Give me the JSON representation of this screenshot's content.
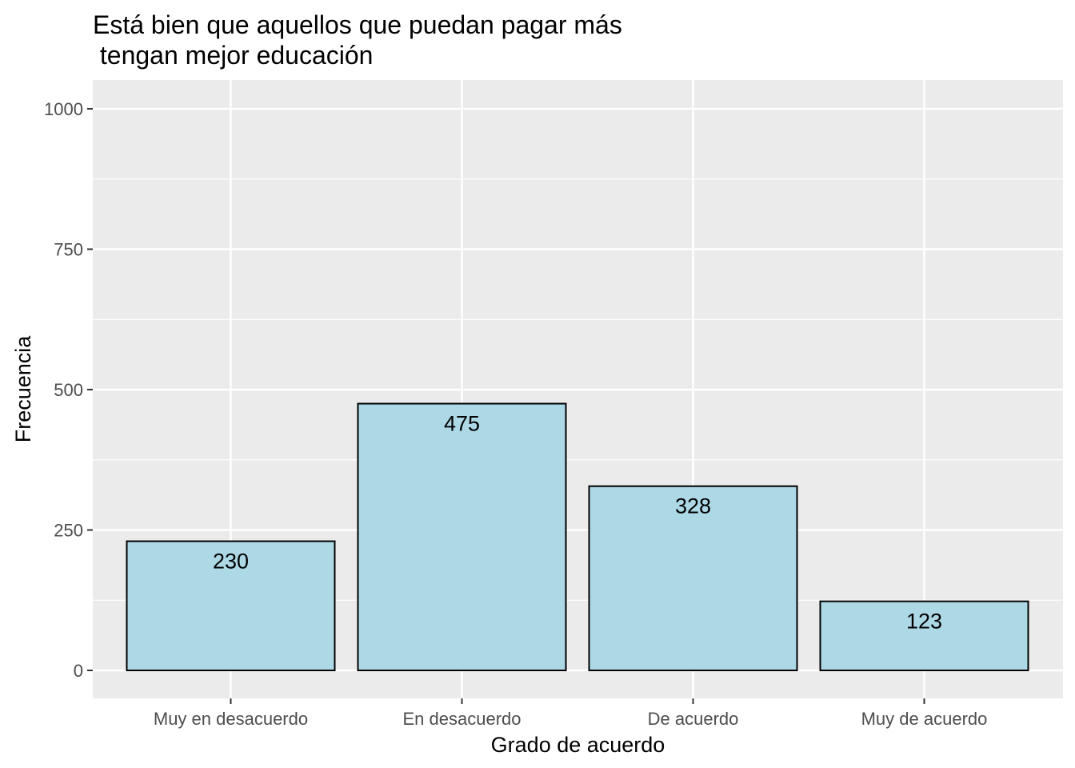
{
  "chart_data": {
    "type": "bar",
    "title": "Está bien que aquellos que puedan pagar más\n tengan mejor educación",
    "xlabel": "Grado de acuerdo",
    "ylabel": "Frecuencia",
    "categories": [
      "Muy en desacuerdo",
      "En desacuerdo",
      "De acuerdo",
      "Muy de acuerdo"
    ],
    "values": [
      230,
      475,
      328,
      123
    ],
    "data_labels": [
      "230",
      "475",
      "328",
      "123"
    ],
    "ylim": [
      0,
      1000
    ],
    "yticks": [
      0,
      250,
      500,
      750,
      1000
    ],
    "ytick_labels": [
      "0",
      "250",
      "500",
      "750",
      "1000"
    ],
    "grid": true,
    "legend": "none",
    "colors": {
      "bar_fill": "#add8e6",
      "bar_stroke": "#000000",
      "panel_bg": "#ebebeb",
      "grid": "#ffffff"
    }
  }
}
